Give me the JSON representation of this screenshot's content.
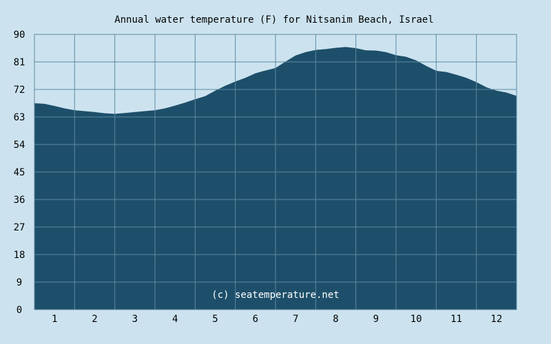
{
  "chart_data": {
    "type": "area",
    "title": "Annual water temperature (F) for Nitsanim Beach, Israel",
    "credit": "(c) seatemperature.net",
    "xlabel": "",
    "ylabel": "",
    "ylim": [
      0,
      90
    ],
    "xlim": [
      0.5,
      12.5
    ],
    "y_ticks": [
      "0",
      "9",
      "18",
      "27",
      "36",
      "45",
      "54",
      "63",
      "72",
      "81",
      "90"
    ],
    "x_ticks": [
      "1",
      "2",
      "3",
      "4",
      "5",
      "6",
      "7",
      "8",
      "9",
      "10",
      "11",
      "12"
    ],
    "grid": true,
    "series": [
      {
        "x": [
          0.5,
          0.75,
          1.0,
          1.25,
          1.5,
          1.75,
          2.0,
          2.25,
          2.5,
          2.75,
          3.0,
          3.25,
          3.5,
          3.75,
          4.0,
          4.25,
          4.5,
          4.75,
          5.0,
          5.25,
          5.5,
          5.75,
          6.0,
          6.25,
          6.5,
          6.75,
          7.0,
          7.25,
          7.5,
          7.75,
          8.0,
          8.25,
          8.5,
          8.75,
          9.0,
          9.25,
          9.5,
          9.75,
          10.0,
          10.25,
          10.5,
          10.75,
          11.0,
          11.25,
          11.5,
          11.75,
          12.0,
          12.25,
          12.5
        ],
        "values": [
          67.5,
          67.3,
          66.6,
          65.8,
          65.2,
          64.9,
          64.6,
          64.2,
          64.0,
          64.3,
          64.6,
          64.9,
          65.2,
          65.8,
          66.7,
          67.7,
          68.8,
          69.8,
          71.6,
          73.2,
          74.6,
          75.8,
          77.3,
          78.2,
          79.0,
          81.1,
          83.1,
          84.2,
          84.9,
          85.2,
          85.6,
          85.9,
          85.5,
          84.8,
          84.7,
          84.2,
          83.2,
          82.7,
          81.5,
          79.7,
          78.1,
          77.7,
          76.8,
          75.8,
          74.4,
          72.7,
          71.6,
          71.0,
          69.9
        ]
      }
    ],
    "colors": {
      "background": "#cce3ef",
      "plot_background": "#cce3ef",
      "area_fill": "#1e4f6a",
      "grid_line": "#5b88a3",
      "credit_text": "#ffffff"
    }
  }
}
